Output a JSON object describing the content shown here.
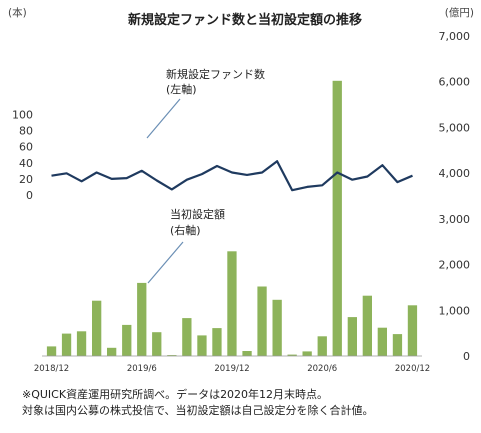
{
  "chart_data": {
    "type": "bar+line",
    "title": "新規設定ファンド数と当初設定額の推移",
    "left_axis": {
      "unit": "(本)",
      "ticks": [
        0,
        20,
        40,
        60,
        80,
        100
      ]
    },
    "right_axis": {
      "unit": "(億円)",
      "ticks": [
        "0",
        "1,000",
        "2,000",
        "3,000",
        "4,000",
        "5,000",
        "6,000",
        "7,000"
      ],
      "ylim": [
        0,
        7000
      ]
    },
    "x_tick_labels": [
      "2018/12",
      "2019/6",
      "2019/12",
      "2020/6",
      "2020/12"
    ],
    "months": 25,
    "series": [
      {
        "name": "新規設定ファンド数(左軸)",
        "axis": "left",
        "kind": "line",
        "color": "#1f3a5f",
        "values": [
          24,
          27,
          17,
          28,
          20,
          21,
          30,
          18,
          7,
          19,
          26,
          36,
          28,
          25,
          28,
          42,
          6,
          10,
          12,
          28,
          19,
          23,
          37,
          16,
          24
        ]
      },
      {
        "name": "当初設定額(右軸)",
        "axis": "right",
        "kind": "bar",
        "color": "#8db35a",
        "values": [
          210,
          490,
          540,
          1210,
          180,
          680,
          1600,
          520,
          20,
          830,
          450,
          610,
          2290,
          110,
          1520,
          1230,
          30,
          100,
          430,
          6020,
          850,
          1320,
          620,
          480,
          1110
        ]
      }
    ],
    "annotations": [
      {
        "text": "新規設定ファンド数",
        "sub": "(左軸)"
      },
      {
        "text": "当初設定額",
        "sub": "(右軸)"
      }
    ]
  },
  "notes": [
    "※QUICK資産運用研究所調べ。データは2020年12月末時点。",
    "対象は国内公募の株式投信で、当初設定額は自己設定分を除く合計値。"
  ]
}
